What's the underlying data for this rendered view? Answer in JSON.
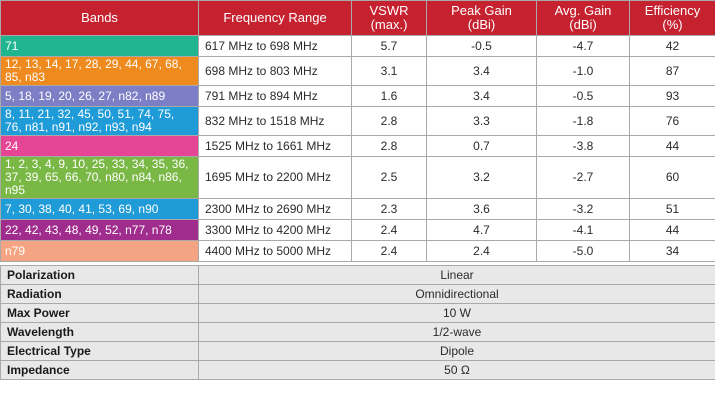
{
  "header": {
    "bands": "Bands",
    "frequency": "Frequency Range",
    "vswr": [
      "VSWR",
      "(max.)"
    ],
    "peak_gain": [
      "Peak Gain",
      "(dBi)"
    ],
    "avg_gain": [
      "Avg. Gain",
      "(dBi)"
    ],
    "efficiency": [
      "Efficiency",
      "(%)"
    ]
  },
  "rows": [
    {
      "bands": "71",
      "color": "#1fb58f",
      "freq": "617 MHz to 698 MHz",
      "vswr": "5.7",
      "peak": "-0.5",
      "avg": "-4.7",
      "eff": "42"
    },
    {
      "bands": "12, 13, 14, 17, 28, 29, 44, 67, 68, 85, n83",
      "color": "#ef8a1e",
      "freq": "698 MHz to 803 MHz",
      "vswr": "3.1",
      "peak": "3.4",
      "avg": "-1.0",
      "eff": "87"
    },
    {
      "bands": "5, 18, 19, 20, 26, 27, n82, n89",
      "color": "#7d7fc6",
      "freq": "791 MHz to 894 MHz",
      "vswr": "1.6",
      "peak": "3.4",
      "avg": "-0.5",
      "eff": "93"
    },
    {
      "bands": "8, 11, 21, 32, 45, 50, 51, 74, 75, 76, n81, n91, n92, n93, n94",
      "color": "#1f9cd8",
      "freq": "832 MHz to 1518 MHz",
      "vswr": "2.8",
      "peak": "3.3",
      "avg": "-1.8",
      "eff": "76"
    },
    {
      "bands": "24",
      "color": "#e54595",
      "freq": "1525 MHz to 1661 MHz",
      "vswr": "2.8",
      "peak": "0.7",
      "avg": "-3.8",
      "eff": "44"
    },
    {
      "bands": "1, 2, 3, 4, 9, 10, 25, 33, 34, 35, 36, 37, 39, 65, 66, 70, n80, n84, n86, n95",
      "color": "#7ab845",
      "freq": "1695 MHz to 2200 MHz",
      "vswr": "2.5",
      "peak": "3.2",
      "avg": "-2.7",
      "eff": "60"
    },
    {
      "bands": "7, 30, 38, 40, 41, 53, 69, n90",
      "color": "#1f9cd8",
      "freq": "2300 MHz to 2690 MHz",
      "vswr": "2.3",
      "peak": "3.6",
      "avg": "-3.2",
      "eff": "51"
    },
    {
      "bands": "22, 42, 43, 48, 49, 52, n77, n78",
      "color": "#a02c8e",
      "freq": "3300 MHz to 4200 MHz",
      "vswr": "2.4",
      "peak": "4.7",
      "avg": "-4.1",
      "eff": "44"
    },
    {
      "bands": "n79",
      "color": "#f4a482",
      "freq": "4400 MHz to 5000 MHz",
      "vswr": "2.4",
      "peak": "2.4",
      "avg": "-5.0",
      "eff": "34"
    }
  ],
  "properties": [
    {
      "label": "Polarization",
      "value": "Linear"
    },
    {
      "label": "Radiation",
      "value": "Omnidirectional"
    },
    {
      "label": "Max Power",
      "value": "10 W"
    },
    {
      "label": "Wavelength",
      "value": "1/2-wave"
    },
    {
      "label": "Electrical Type",
      "value": "Dipole"
    },
    {
      "label": "Impedance",
      "value": "50 Ω"
    }
  ],
  "colors": {
    "header_bg": "#c5212f",
    "property_bg": "#e8e8e8"
  }
}
